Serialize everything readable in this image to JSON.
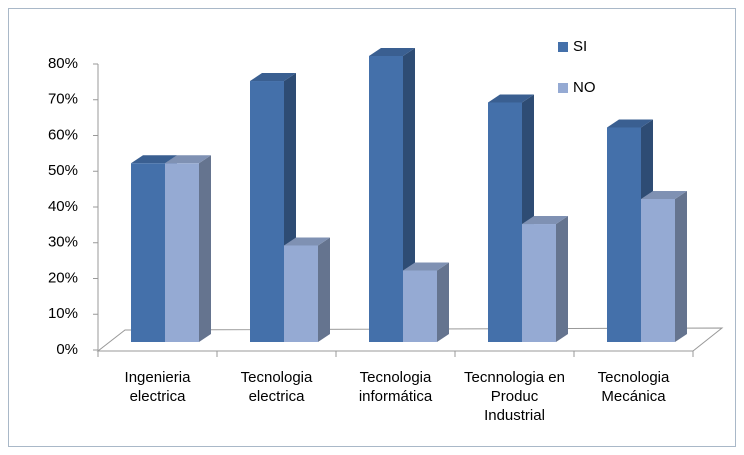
{
  "chart_data": {
    "type": "bar3d",
    "categories": [
      "Ingenieria electrica",
      "Tecnologia electrica",
      "Tecnologia informática",
      "Tecnnologia en Produc Industrial",
      "Tecnologia Mecánica"
    ],
    "series": [
      {
        "name": "SI",
        "color": "#4470aa",
        "values": [
          50,
          73,
          80,
          67,
          60
        ]
      },
      {
        "name": "NO",
        "color": "#95aad3",
        "values": [
          50,
          27,
          20,
          33,
          40
        ]
      }
    ],
    "ylim": [
      0,
      80
    ],
    "yticks": [
      {
        "value": 0,
        "label": "0%"
      },
      {
        "value": 10,
        "label": "10%"
      },
      {
        "value": 20,
        "label": "20%"
      },
      {
        "value": 30,
        "label": "30%"
      },
      {
        "value": 40,
        "label": "40%"
      },
      {
        "value": 50,
        "label": "50%"
      },
      {
        "value": 60,
        "label": "60%"
      },
      {
        "value": 70,
        "label": "70%"
      },
      {
        "value": 80,
        "label": "80%"
      }
    ],
    "grid": false,
    "legend": "top-right"
  }
}
